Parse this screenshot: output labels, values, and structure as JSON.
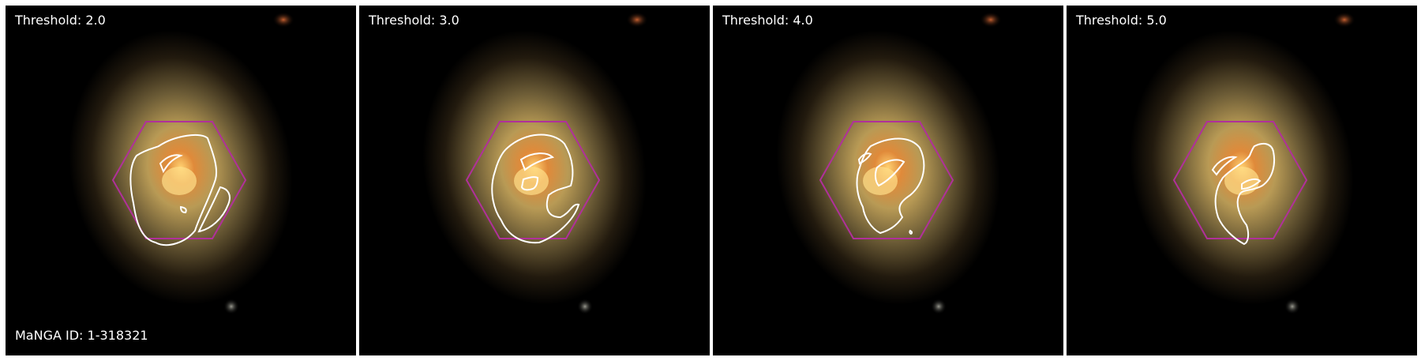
{
  "panels": [
    {
      "threshold_label": "Threshold: 2.0",
      "id_label": "MaNGA ID: 1-318321"
    },
    {
      "threshold_label": "Threshold: 3.0",
      "id_label": ""
    },
    {
      "threshold_label": "Threshold: 4.0",
      "id_label": ""
    },
    {
      "threshold_label": "Threshold: 5.0",
      "id_label": ""
    }
  ],
  "colors": {
    "background": "#000000",
    "hexagon": "#b0309a",
    "contour": "#ffffff",
    "label": "#ffffff"
  },
  "icons": {
    "galaxy": "galaxy-image",
    "ifu_footprint": "hexagon-footprint"
  }
}
